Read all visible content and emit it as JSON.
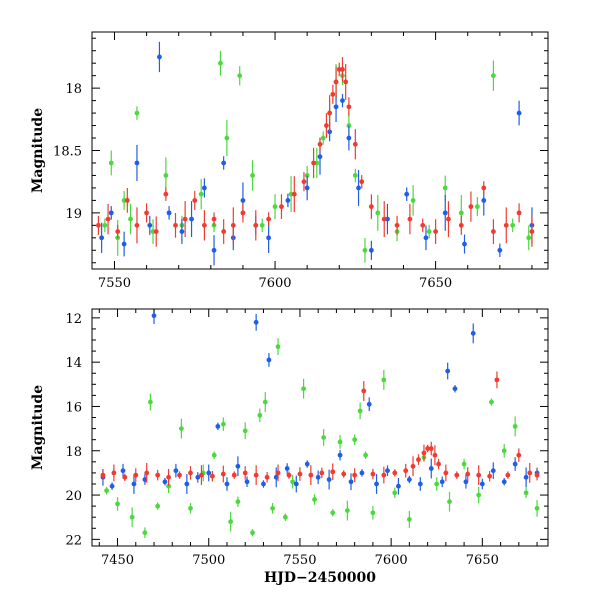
{
  "chart_data": [
    {
      "type": "scatter",
      "title": "",
      "xlabel": "",
      "ylabel": "Magnitude",
      "xlim": [
        7543,
        7685
      ],
      "ylim": [
        19.45,
        17.55
      ],
      "y_inverted": true,
      "xticks": [
        7550,
        7600,
        7650
      ],
      "yticks": [
        18,
        18.5,
        19
      ],
      "grid": false,
      "series": [
        {
          "color": "#4cd93e",
          "x": [
            7547,
            7549,
            7551,
            7553,
            7555,
            7557,
            7562,
            7566,
            7571,
            7577,
            7581,
            7583,
            7585,
            7589,
            7593,
            7596,
            7600,
            7605,
            7610,
            7613,
            7615,
            7617,
            7619,
            7621,
            7623,
            7625,
            7628,
            7632,
            7638,
            7643,
            7648,
            7653,
            7658,
            7663,
            7668,
            7674,
            7679
          ],
          "y": [
            19.1,
            18.6,
            19.2,
            18.9,
            19.05,
            18.2,
            19.15,
            18.7,
            19.1,
            18.85,
            19.1,
            17.8,
            18.4,
            17.9,
            18.7,
            19.1,
            18.95,
            18.85,
            18.7,
            18.6,
            18.4,
            18.2,
            17.95,
            17.9,
            18.3,
            18.7,
            19.3,
            19.0,
            19.15,
            18.9,
            19.15,
            18.8,
            19.0,
            18.95,
            17.9,
            19.1,
            19.2
          ]
        },
        {
          "color": "#1f5ee8",
          "x": [
            7546,
            7549,
            7553,
            7557,
            7561,
            7564,
            7567,
            7571,
            7574,
            7578,
            7581,
            7584,
            7587,
            7590,
            7594,
            7598,
            7604,
            7610,
            7614,
            7617,
            7619,
            7621,
            7623,
            7626,
            7630,
            7635,
            7641,
            7647,
            7653,
            7659,
            7665,
            7670,
            7676,
            7680
          ],
          "y": [
            19.2,
            19.0,
            19.25,
            18.6,
            19.1,
            17.75,
            19.0,
            19.15,
            19.05,
            18.8,
            19.3,
            18.6,
            19.2,
            18.9,
            19.1,
            19.2,
            18.9,
            18.8,
            18.55,
            18.35,
            18.15,
            18.1,
            18.4,
            18.8,
            19.3,
            19.05,
            18.85,
            19.2,
            19.0,
            19.25,
            18.9,
            19.3,
            18.2,
            19.1
          ]
        },
        {
          "color": "#f03c2e",
          "x": [
            7545,
            7548,
            7551,
            7554,
            7557,
            7560,
            7563,
            7566,
            7569,
            7572,
            7575,
            7578,
            7581,
            7584,
            7587,
            7590,
            7594,
            7598,
            7602,
            7606,
            7609,
            7612,
            7614,
            7616,
            7617,
            7618,
            7619,
            7620,
            7621,
            7622,
            7623,
            7625,
            7627,
            7630,
            7634,
            7638,
            7642,
            7646,
            7650,
            7654,
            7658,
            7661,
            7665,
            7668,
            7672,
            7676,
            7680
          ],
          "y": [
            19.1,
            19.05,
            19.15,
            18.9,
            19.1,
            19.0,
            19.15,
            18.85,
            19.1,
            19.05,
            18.9,
            19.1,
            19.05,
            19.15,
            19.1,
            19.0,
            19.1,
            19.05,
            18.95,
            18.85,
            18.75,
            18.6,
            18.45,
            18.3,
            18.2,
            18.05,
            17.95,
            17.85,
            17.85,
            17.95,
            18.15,
            18.45,
            18.75,
            18.95,
            19.05,
            19.1,
            19.05,
            19.1,
            19.15,
            19.05,
            19.1,
            18.95,
            18.8,
            19.15,
            19.1,
            19.0,
            19.15
          ]
        }
      ]
    },
    {
      "type": "scatter",
      "title": "",
      "xlabel": "HJD−2450000",
      "ylabel": "Magnitude",
      "xlim": [
        7436,
        7686
      ],
      "ylim": [
        22.3,
        11.6
      ],
      "y_inverted": true,
      "xticks": [
        7450,
        7500,
        7550,
        7600,
        7650
      ],
      "yticks": [
        12,
        14,
        16,
        18,
        20,
        22
      ],
      "grid": false,
      "series": [
        {
          "color": "#4cd93e",
          "x": [
            7444,
            7450,
            7458,
            7465,
            7468,
            7472,
            7478,
            7485,
            7490,
            7497,
            7503,
            7508,
            7512,
            7516,
            7520,
            7524,
            7528,
            7531,
            7535,
            7538,
            7542,
            7546,
            7552,
            7558,
            7563,
            7568,
            7572,
            7576,
            7580,
            7583,
            7586,
            7590,
            7596,
            7602,
            7610,
            7618,
            7625,
            7632,
            7640,
            7648,
            7655,
            7662,
            7668,
            7674,
            7680
          ],
          "y": [
            19.8,
            20.4,
            21.0,
            21.7,
            15.8,
            20.5,
            19.6,
            17.0,
            20.6,
            19.0,
            18.2,
            16.8,
            21.2,
            20.3,
            17.1,
            21.7,
            16.4,
            15.8,
            20.6,
            13.3,
            21.0,
            19.4,
            15.2,
            20.2,
            17.4,
            20.8,
            17.6,
            20.7,
            17.5,
            16.2,
            18.2,
            20.8,
            14.8,
            19.9,
            21.1,
            18.3,
            19.5,
            20.3,
            18.6,
            20.0,
            15.8,
            18.0,
            16.9,
            19.9,
            20.6
          ]
        },
        {
          "color": "#1f5ee8",
          "x": [
            7442,
            7447,
            7453,
            7459,
            7465,
            7470,
            7476,
            7482,
            7488,
            7494,
            7500,
            7505,
            7510,
            7516,
            7521,
            7526,
            7530,
            7533,
            7537,
            7543,
            7548,
            7554,
            7560,
            7566,
            7572,
            7578,
            7584,
            7588,
            7592,
            7598,
            7604,
            7610,
            7616,
            7622,
            7628,
            7631,
            7635,
            7641,
            7645,
            7650,
            7656,
            7662,
            7668,
            7674,
            7680
          ],
          "y": [
            19.2,
            19.6,
            18.9,
            19.5,
            19.3,
            11.9,
            19.4,
            18.9,
            19.5,
            19.2,
            19.0,
            16.9,
            19.5,
            18.7,
            19.4,
            12.2,
            19.5,
            13.9,
            19.2,
            18.8,
            19.5,
            18.6,
            19.2,
            19.3,
            18.2,
            19.4,
            19.0,
            15.9,
            19.5,
            18.9,
            19.6,
            19.3,
            19.5,
            18.8,
            19.4,
            14.4,
            15.2,
            19.4,
            12.7,
            19.5,
            18.9,
            19.4,
            18.6,
            19.2,
            19.0
          ]
        },
        {
          "color": "#f03c2e",
          "x": [
            7442,
            7448,
            7454,
            7460,
            7466,
            7472,
            7478,
            7484,
            7490,
            7496,
            7502,
            7508,
            7514,
            7520,
            7526,
            7532,
            7538,
            7544,
            7550,
            7556,
            7562,
            7568,
            7574,
            7580,
            7585,
            7590,
            7596,
            7602,
            7608,
            7612,
            7615,
            7618,
            7620,
            7622,
            7624,
            7626,
            7630,
            7636,
            7642,
            7648,
            7654,
            7658,
            7664,
            7670,
            7676,
            7680
          ],
          "y": [
            19.1,
            19.0,
            19.2,
            19.1,
            19.0,
            19.1,
            19.2,
            19.1,
            19.0,
            19.1,
            19.15,
            19.05,
            19.1,
            19.0,
            19.1,
            19.2,
            19.0,
            19.1,
            19.05,
            19.1,
            19.0,
            18.95,
            19.05,
            19.1,
            15.3,
            19.05,
            19.1,
            19.0,
            18.9,
            18.7,
            18.4,
            18.1,
            17.9,
            17.9,
            18.2,
            18.6,
            19.0,
            19.1,
            19.05,
            19.1,
            19.15,
            14.8,
            19.1,
            18.2,
            19.0,
            19.1
          ]
        }
      ]
    }
  ]
}
